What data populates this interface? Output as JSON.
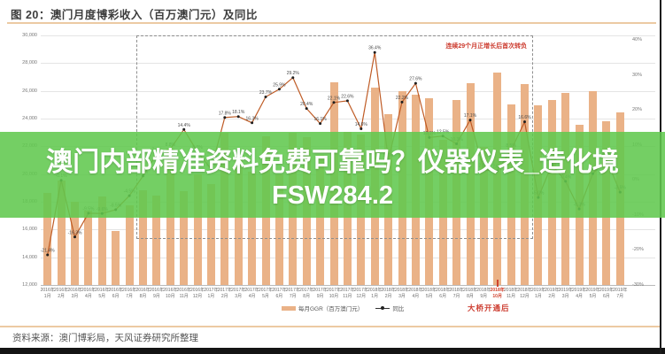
{
  "page": {
    "title": "图 20：澳门月度博彩收入（百万澳门元）及同比",
    "source_note": "资料来源：澳门博彩局，天风证券研究所整理"
  },
  "overlay": {
    "line1": "澳门内部精准资料免费可靠吗？仪器仪表_造化境",
    "line2": "FSW284.2",
    "background_color": "#61c84e",
    "text_color": "#ffffff"
  },
  "chart_data": {
    "type": "bar+line",
    "title": "澳门月度博彩收入（百万澳门元）及同比",
    "legend": {
      "bars": "每月GGR（百万澳门元）",
      "line": "同比"
    },
    "legend_position": "bottom",
    "grid": true,
    "left_axis": {
      "label": "每月GGR（百万澳门元）",
      "min": 12000,
      "max": 30000,
      "step": 2000
    },
    "right_axis": {
      "label": "同比",
      "min": -30,
      "max": 40,
      "step": 10,
      "unit": "%"
    },
    "annotations": {
      "dashed_box_label": "连续29个月正增长后首次转负",
      "dashed_box_range": [
        "2016年8月",
        "2018年12月"
      ],
      "bridge_label": "大桥开通后",
      "bridge_month": "2018年10月"
    },
    "months": [
      {
        "y": "2016年",
        "m": "1月",
        "ggr": 18673,
        "yoy": -21.4
      },
      {
        "y": "2016年",
        "m": "2月",
        "ggr": 19519,
        "yoy": -0.1
      },
      {
        "y": "2016年",
        "m": "3月",
        "ggr": 17980,
        "yoy": -16.3
      },
      {
        "y": "2016年",
        "m": "4月",
        "ggr": 17340,
        "yoy": -9.5
      },
      {
        "y": "2016年",
        "m": "5月",
        "ggr": 18389,
        "yoy": -9.6
      },
      {
        "y": "2016年",
        "m": "6月",
        "ggr": 15885,
        "yoy": -8.5
      },
      {
        "y": "2016年",
        "m": "7月",
        "ggr": 17771,
        "yoy": -4.5
      },
      {
        "y": "2016年",
        "m": "8月",
        "ggr": 18837,
        "yoy": 1.1
      },
      {
        "y": "2016年",
        "m": "9月",
        "ggr": 18431,
        "yoy": 7.4
      },
      {
        "y": "2016年",
        "m": "10月",
        "ggr": 21807,
        "yoy": 8.8
      },
      {
        "y": "2016年",
        "m": "11月",
        "ggr": 18785,
        "yoy": 14.4
      },
      {
        "y": "2016年",
        "m": "12月",
        "ggr": 19975,
        "yoy": 8.0
      },
      {
        "y": "2017年",
        "m": "1月",
        "ggr": 19255,
        "yoy": 3.1
      },
      {
        "y": "2017年",
        "m": "2月",
        "ggr": 22992,
        "yoy": 17.8
      },
      {
        "y": "2017年",
        "m": "3月",
        "ggr": 21231,
        "yoy": 18.1
      },
      {
        "y": "2017年",
        "m": "4月",
        "ggr": 20164,
        "yoy": 16.3
      },
      {
        "y": "2017年",
        "m": "5月",
        "ggr": 22744,
        "yoy": 23.7
      },
      {
        "y": "2017年",
        "m": "6月",
        "ggr": 19992,
        "yoy": 25.9
      },
      {
        "y": "2017年",
        "m": "7月",
        "ggr": 22965,
        "yoy": 29.2
      },
      {
        "y": "2017年",
        "m": "8月",
        "ggr": 22676,
        "yoy": 20.4
      },
      {
        "y": "2017年",
        "m": "9月",
        "ggr": 21408,
        "yoy": 16.1
      },
      {
        "y": "2017年",
        "m": "10月",
        "ggr": 26630,
        "yoy": 22.1
      },
      {
        "y": "2017年",
        "m": "11月",
        "ggr": 23038,
        "yoy": 22.6
      },
      {
        "y": "2017年",
        "m": "12月",
        "ggr": 22882,
        "yoy": 14.6
      },
      {
        "y": "2018年",
        "m": "1月",
        "ggr": 26265,
        "yoy": 36.4
      },
      {
        "y": "2018年",
        "m": "2月",
        "ggr": 24312,
        "yoy": 5.7
      },
      {
        "y": "2018年",
        "m": "3月",
        "ggr": 25952,
        "yoy": 22.2
      },
      {
        "y": "2018年",
        "m": "4月",
        "ggr": 25727,
        "yoy": 27.6
      },
      {
        "y": "2018年",
        "m": "5月",
        "ggr": 25488,
        "yoy": 12.1
      },
      {
        "y": "2018年",
        "m": "6月",
        "ggr": 22490,
        "yoy": 12.5
      },
      {
        "y": "2018年",
        "m": "7月",
        "ggr": 25327,
        "yoy": 10.3
      },
      {
        "y": "2018年",
        "m": "8月",
        "ggr": 26559,
        "yoy": 17.1
      },
      {
        "y": "2018年",
        "m": "9月",
        "ggr": 21952,
        "yoy": 2.8
      },
      {
        "y": "2018年",
        "m": "10月",
        "ggr": 27328,
        "yoy": 2.6
      },
      {
        "y": "2018年",
        "m": "11月",
        "ggr": 24995,
        "yoy": 8.5
      },
      {
        "y": "2018年",
        "m": "12月",
        "ggr": 26468,
        "yoy": 16.6
      },
      {
        "y": "2019年",
        "m": "1月",
        "ggr": 24942,
        "yoy": -5.0
      },
      {
        "y": "2019年",
        "m": "2月",
        "ggr": 25370,
        "yoy": 4.4
      },
      {
        "y": "2019年",
        "m": "3月",
        "ggr": 25840,
        "yoy": -0.4
      },
      {
        "y": "2019年",
        "m": "4月",
        "ggr": 23588,
        "yoy": -8.3
      },
      {
        "y": "2019年",
        "m": "5月",
        "ggr": 25952,
        "yoy": 1.8
      },
      {
        "y": "2019年",
        "m": "6月",
        "ggr": 23812,
        "yoy": 5.9
      },
      {
        "y": "2019年",
        "m": "7月",
        "ggr": 24453,
        "yoy": -3.5
      }
    ]
  },
  "colors": {
    "bar": "#eab287",
    "line": "#bf5b25",
    "marker": "#1f1f1f",
    "accent_red": "#cc3b2e",
    "divider_orange": "#eccaa3",
    "grid": "#e4e4e4",
    "overlay_green": "#61c84e"
  }
}
